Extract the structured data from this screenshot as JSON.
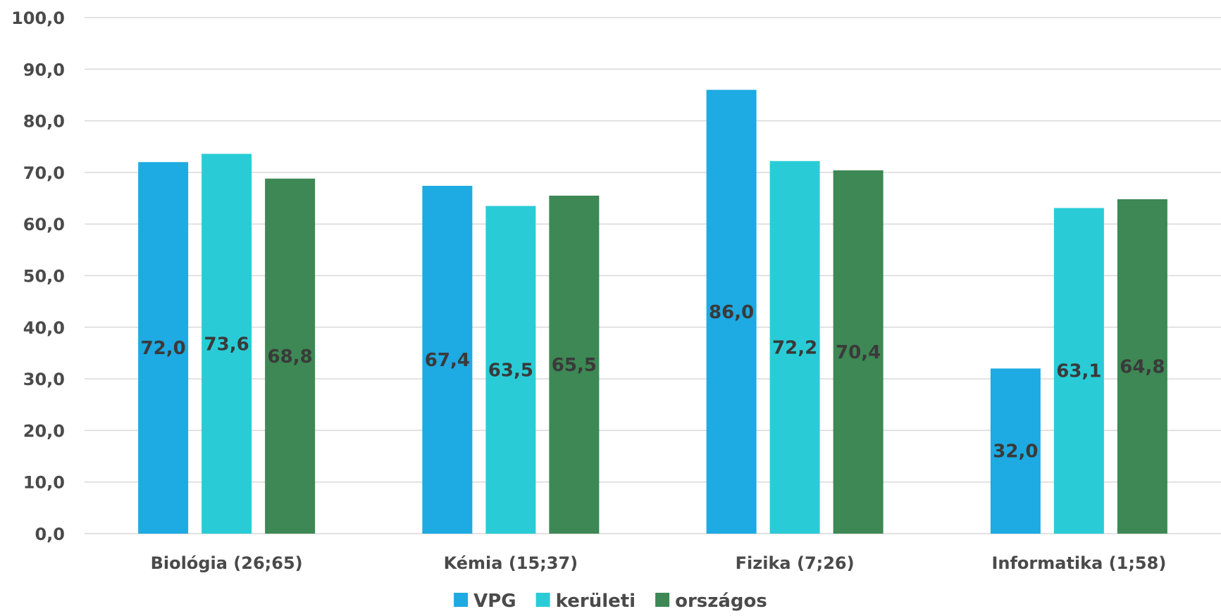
{
  "chart_data": {
    "type": "bar",
    "title": "",
    "xlabel": "",
    "ylabel": "",
    "ylim": [
      0,
      100
    ],
    "yticks": [
      "0,0",
      "10,0",
      "20,0",
      "30,0",
      "40,0",
      "50,0",
      "60,0",
      "70,0",
      "80,0",
      "90,0",
      "100,0"
    ],
    "grid": true,
    "legend_position": "bottom",
    "categories": [
      "Biológia (26;65)",
      "Kémia (15;37)",
      "Fizika (7;26)",
      "Informatika (1;58)"
    ],
    "series": [
      {
        "name": "VPG",
        "color": "#1eaae2",
        "values": [
          72.0,
          67.4,
          86.0,
          32.0
        ],
        "labels": [
          "72,0",
          "67,4",
          "86,0",
          "32,0"
        ]
      },
      {
        "name": "kerületi",
        "color": "#29ccd6",
        "values": [
          73.6,
          63.5,
          72.2,
          63.1
        ],
        "labels": [
          "73,6",
          "63,5",
          "72,2",
          "63,1"
        ]
      },
      {
        "name": "országos",
        "color": "#3d8854",
        "values": [
          68.8,
          65.5,
          70.4,
          64.8
        ],
        "labels": [
          "68,8",
          "65,5",
          "70,4",
          "64,8"
        ]
      }
    ]
  }
}
